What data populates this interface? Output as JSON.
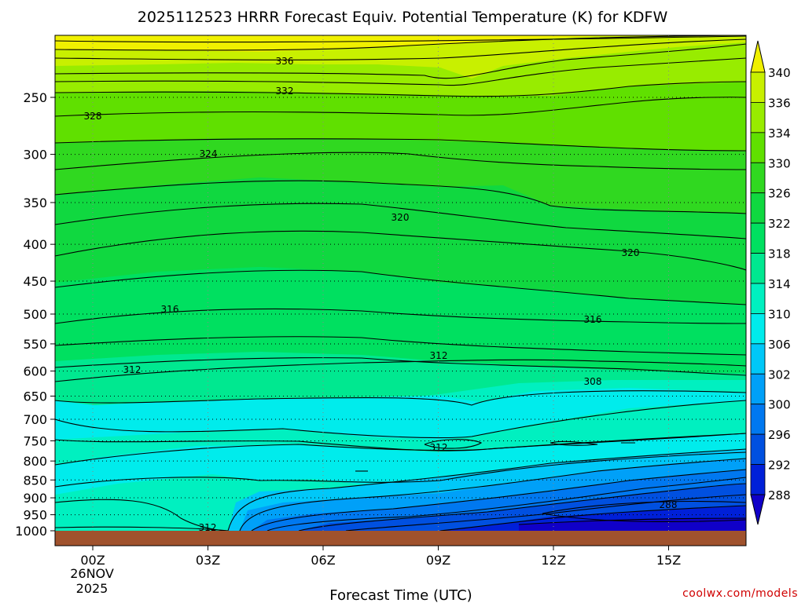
{
  "chart_data": {
    "type": "heatmap",
    "title": "2025112523 HRRR Forecast Equiv. Potential Temperature (K) for KDFW",
    "xlabel": "Forecast Time (UTC)",
    "ylabel": "",
    "x_ticks": [
      "00Z",
      "03Z",
      "06Z",
      "09Z",
      "12Z",
      "15Z"
    ],
    "x_date_line1": "26NOV",
    "x_date_line2": "2025",
    "y_ticks": [
      250,
      300,
      350,
      400,
      450,
      500,
      550,
      600,
      650,
      700,
      750,
      800,
      850,
      900,
      950,
      1000
    ],
    "y_scale": "log-pressure (hPa, inverted)",
    "ylim": [
      1000,
      200
    ],
    "grid": "dotted horizontal lines at each pressure tick, dotted vertical lines at each time tick",
    "colorbar": {
      "labels": [
        340,
        336,
        334,
        330,
        326,
        322,
        318,
        314,
        310,
        306,
        302,
        300,
        296,
        292,
        288
      ],
      "colors": [
        "#f0f000",
        "#c8f000",
        "#98ec00",
        "#60e000",
        "#30d820",
        "#10d840",
        "#00e060",
        "#00e890",
        "#00f0c0",
        "#00ecec",
        "#00c8f8",
        "#00a0f8",
        "#0078f0",
        "#0050e0",
        "#0020d8",
        "#1000c8"
      ]
    },
    "contour_labels": [
      {
        "text": "336"
      },
      {
        "text": "332"
      },
      {
        "text": "328"
      },
      {
        "text": "324"
      },
      {
        "text": "320"
      },
      {
        "text": "320"
      },
      {
        "text": "316"
      },
      {
        "text": "316"
      },
      {
        "text": "312"
      },
      {
        "text": "312"
      },
      {
        "text": "312"
      },
      {
        "text": "312"
      },
      {
        "text": "308"
      },
      {
        "text": "288"
      }
    ],
    "ground_color": "#a0522d"
  },
  "credit": "coolwx.com/models"
}
